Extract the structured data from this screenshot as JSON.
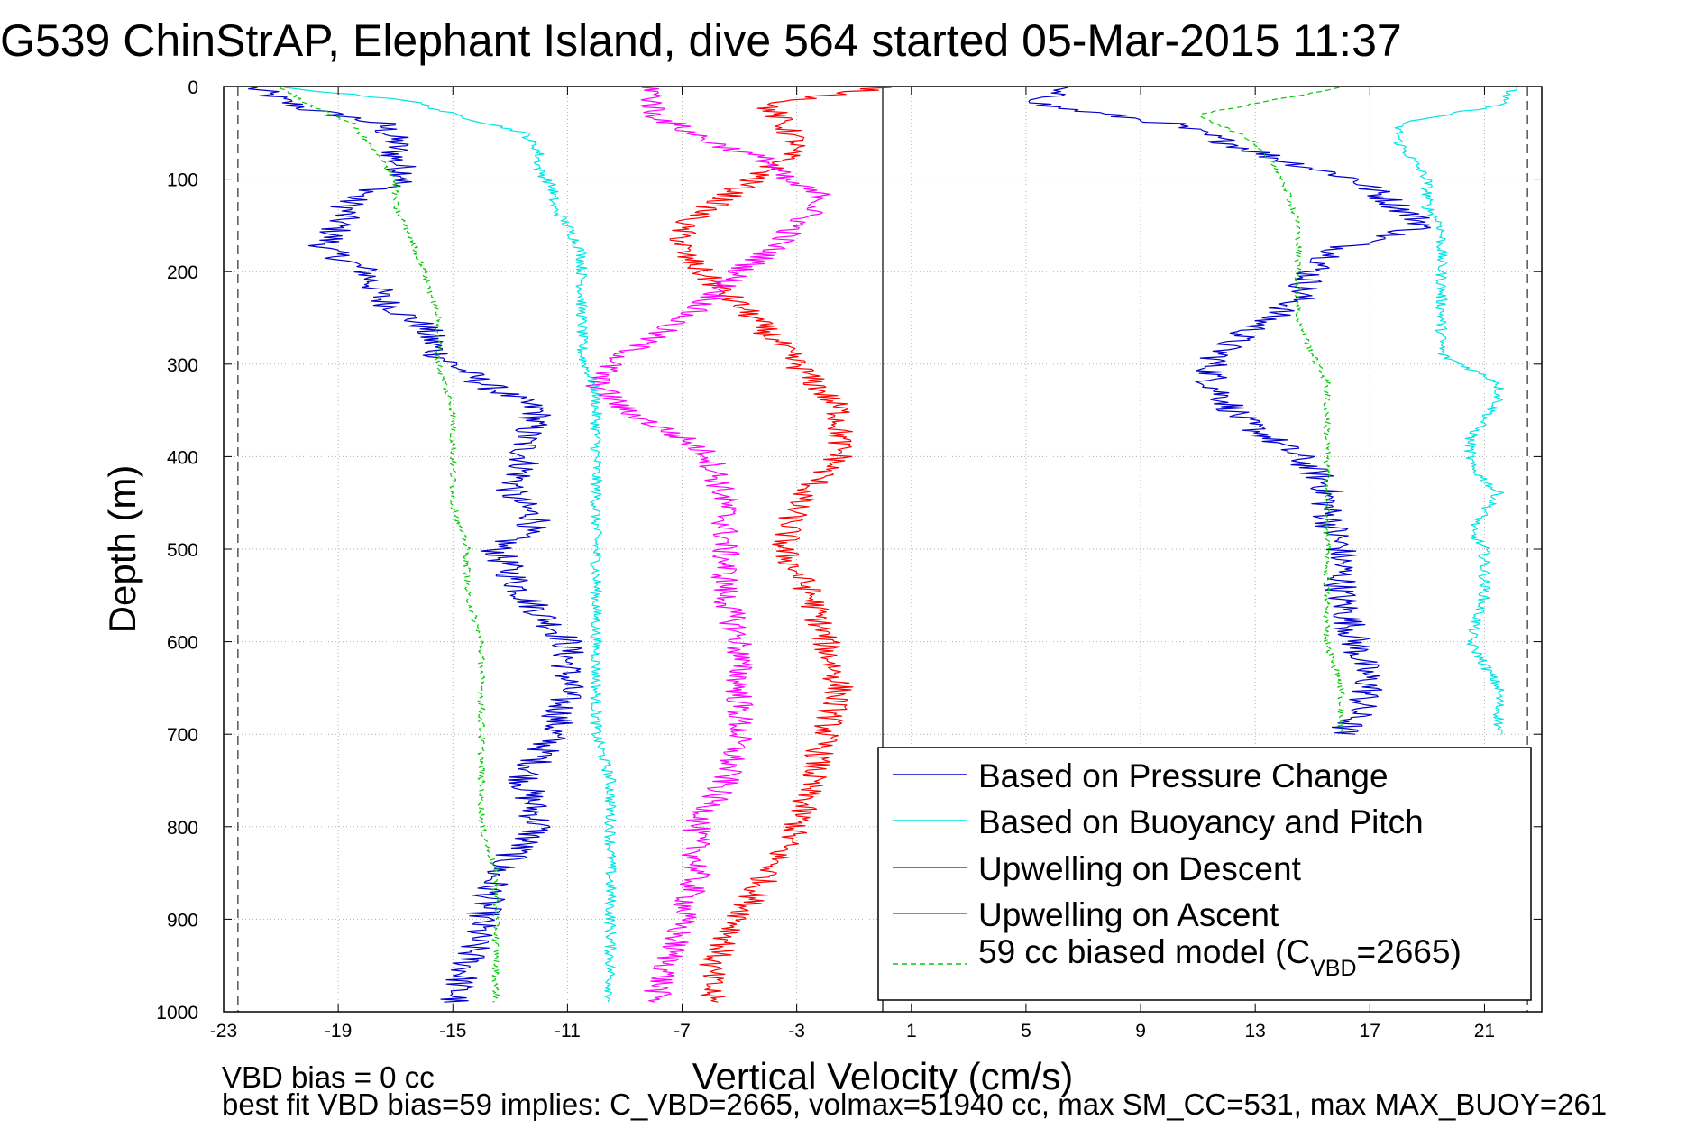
{
  "title": "G539 ChinStrAP, Elephant Island, dive 564 started 05-Mar-2015 11:37",
  "notes": {
    "line1": "VBD bias = 0 cc",
    "line2": "best fit VBD bias=59 implies: C_VBD=2665, volmax=51940 cc, max SM_CC=531, max MAX_BUOY=261"
  },
  "legend": {
    "placement": "bottom-right",
    "entries": [
      {
        "label": "Based on Pressure Change",
        "color": "#0000cc",
        "style": "solid"
      },
      {
        "label": "Based on Buoyancy and Pitch",
        "color": "#00e5e5",
        "style": "solid"
      },
      {
        "label": "Upwelling on Descent",
        "color": "#ff0000",
        "style": "solid"
      },
      {
        "label": "Upwelling on Ascent",
        "color": "#ff00ff",
        "style": "solid"
      },
      {
        "label_prefix": "59 cc biased model (C",
        "label_sub": "VBD",
        "label_suffix": "=2665)",
        "color": "#00cc00",
        "style": "dashed"
      }
    ]
  },
  "chart_data": {
    "type": "line",
    "title": "G539 ChinStrAP, Elephant Island, dive 564 started 05-Mar-2015 11:37",
    "xlabel": "Vertical Velocity (cm/s)",
    "ylabel": "Depth (m)",
    "xlim": [
      -23,
      23
    ],
    "ylim": [
      0,
      1000
    ],
    "y_reversed": true,
    "grid": true,
    "xticks": [
      "-23",
      "-19",
      "-15",
      "-11",
      "-7",
      "-3",
      "1",
      "5",
      "9",
      "13",
      "17",
      "21"
    ],
    "yticks": [
      "0",
      "100",
      "200",
      "300",
      "400",
      "500",
      "600",
      "700",
      "800",
      "900",
      "1000"
    ],
    "reference_lines": {
      "vertical_solid_at_x": 0,
      "vertical_dashed_at_x": [
        -22.5,
        22.5
      ]
    },
    "noise_amplitude": {
      "pressure": 0.6,
      "buoyancy": 0.2,
      "descent": 0.5,
      "ascent": 0.5,
      "model": 0.12
    },
    "series": [
      {
        "name": "Based on Pressure Change",
        "color": "#0000cc",
        "dash": "",
        "segments": [
          {
            "depth": [
              1,
              15,
              25,
              40,
              60,
              80,
              100,
              120,
              150,
              175,
              200,
              230,
              260,
              290,
              320,
              350,
              380,
              410,
              440,
              470,
              500,
              550,
              600,
              650,
              700,
              750,
              800,
              850,
              900,
              950,
              990
            ],
            "velocity": [
              -22,
              -21,
              -20,
              -17.5,
              -17,
              -17,
              -16.5,
              -18.5,
              -19,
              -19.5,
              -18,
              -17.5,
              -16,
              -15.5,
              -14,
              -12,
              -12.5,
              -12.5,
              -13,
              -12,
              -13.5,
              -12.5,
              -11,
              -11,
              -11.5,
              -12.5,
              -12,
              -13.5,
              -14,
              -14.5,
              -15
            ]
          },
          {
            "depth": [
              1,
              20,
              40,
              60,
              80,
              100,
              130,
              150,
              175,
              200,
              230,
              260,
              280,
              300,
              320,
              340,
              360,
              380,
              400,
              430,
              460,
              500,
              550,
              600,
              650,
              680,
              700
            ],
            "velocity": [
              6,
              5.5,
              10,
              12,
              14,
              16.5,
              18,
              19,
              16,
              15,
              14.5,
              13,
              12,
              11.5,
              11.5,
              12,
              12.5,
              13.5,
              14.5,
              15.5,
              15.5,
              16,
              16,
              16.5,
              17,
              16.5,
              16
            ]
          }
        ]
      },
      {
        "name": "Based on Buoyancy and Pitch",
        "color": "#00e5e5",
        "dash": "",
        "segments": [
          {
            "depth": [
              1,
              15,
              30,
              50,
              70,
              90,
              110,
              130,
              150,
              180,
              210,
              250,
              290,
              330,
              370,
              400,
              450,
              500,
              550,
              600,
              650,
              700,
              750,
              800,
              850,
              900,
              950,
              990
            ],
            "velocity": [
              -21,
              -16.5,
              -15,
              -12.5,
              -12,
              -12,
              -11.5,
              -11.5,
              -11,
              -10.5,
              -10.5,
              -10.5,
              -10.5,
              -10,
              -10,
              -10,
              -10,
              -10,
              -10,
              -10,
              -10,
              -10,
              -9.5,
              -9.5,
              -9.5,
              -9.5,
              -9.5,
              -9.5
            ]
          },
          {
            "depth": [
              1,
              20,
              40,
              60,
              80,
              100,
              130,
              150,
              180,
              200,
              250,
              290,
              320,
              340,
              380,
              410,
              440,
              480,
              500,
              550,
              600,
              650,
              700
            ],
            "velocity": [
              22,
              21.5,
              18,
              18,
              18.5,
              19,
              19,
              19.5,
              19.5,
              19.5,
              19.5,
              19.5,
              21.5,
              21.5,
              20.5,
              20.5,
              21.5,
              20.5,
              21,
              21,
              20.5,
              21.5,
              21.5
            ]
          }
        ]
      },
      {
        "name": "Upwelling on Descent",
        "color": "#ff0000",
        "dash": "",
        "segments": [
          {
            "depth": [
              1,
              20,
              40,
              60,
              80,
              100,
              120,
              150,
              180,
              210,
              250,
              300,
              350,
              400,
              450,
              500,
              550,
              600,
              650,
              700,
              750,
              800,
              850,
              900,
              950,
              990
            ],
            "velocity": [
              0,
              -4,
              -3.5,
              -3,
              -3.5,
              -4.5,
              -5.5,
              -7,
              -7,
              -6,
              -4.5,
              -3,
              -1.5,
              -1.5,
              -3,
              -3.5,
              -2.5,
              -2,
              -1.5,
              -2,
              -2.5,
              -3,
              -4,
              -5,
              -6,
              -6
            ]
          }
        ]
      },
      {
        "name": "Upwelling on Ascent",
        "color": "#ff00ff",
        "dash": "",
        "segments": [
          {
            "depth": [
              1,
              30,
              60,
              80,
              100,
              120,
              150,
              180,
              200,
              230,
              260,
              300,
              320,
              350,
              380,
              400,
              450,
              500,
              550,
              600,
              650,
              700,
              750,
              800,
              850,
              900,
              950,
              990
            ],
            "velocity": [
              -8,
              -8,
              -6,
              -4,
              -3.5,
              -2,
              -3,
              -4,
              -5,
              -6,
              -7.5,
              -9.5,
              -10,
              -9,
              -7,
              -6,
              -5.5,
              -5.5,
              -5.5,
              -5,
              -5,
              -5,
              -5.5,
              -6.5,
              -6.5,
              -7,
              -7.5,
              -8
            ]
          }
        ]
      },
      {
        "name": "59 cc biased model (C_VBD=2665)",
        "color": "#00cc00",
        "dash": "6,4",
        "segments": [
          {
            "depth": [
              1,
              20,
              40,
              60,
              80,
              100,
              130,
              160,
              200,
              250,
              300,
              350,
              400,
              450,
              500,
              550,
              600,
              650,
              700,
              750,
              800,
              850,
              900,
              950,
              990
            ],
            "velocity": [
              -21,
              -20,
              -18.5,
              -18,
              -17.5,
              -17,
              -17,
              -16.5,
              -16,
              -15.5,
              -15.5,
              -15,
              -15,
              -15,
              -14.5,
              -14.5,
              -14,
              -14,
              -14,
              -14,
              -14,
              -13.5,
              -13.5,
              -13.5,
              -13.5
            ]
          },
          {
            "depth": [
              1,
              30,
              60,
              100,
              150,
              200,
              250,
              290,
              320,
              350,
              400,
              450,
              500,
              550,
              600,
              650,
              700
            ],
            "velocity": [
              16,
              11,
              13,
              14,
              14.5,
              14.5,
              14.5,
              15,
              15.5,
              15.5,
              15.5,
              15.5,
              15.5,
              15.5,
              15.5,
              16,
              16
            ]
          }
        ]
      }
    ]
  }
}
